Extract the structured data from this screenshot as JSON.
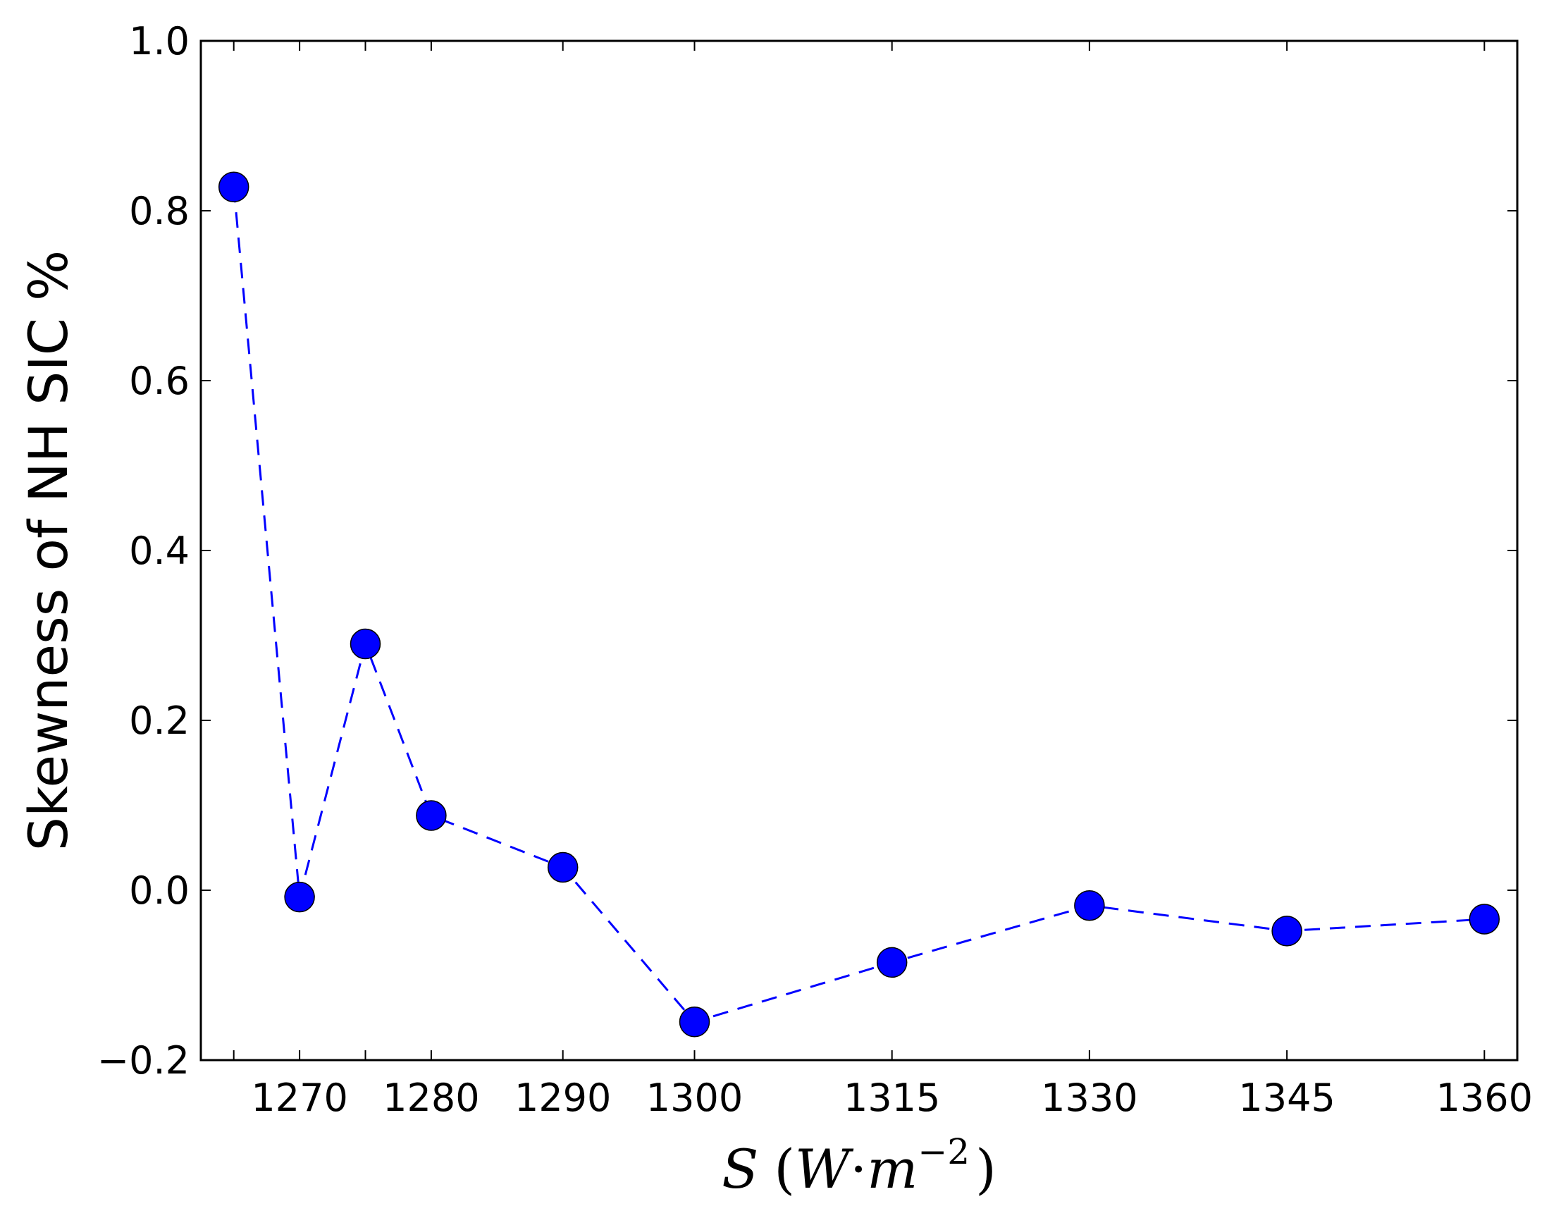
{
  "chart_data": {
    "type": "line",
    "title": "",
    "xlabel": {
      "var": "S",
      "open": "(",
      "unit": "W",
      "dot": "·",
      "m": "m",
      "exponent": "−2",
      "close": ")"
    },
    "ylabel": "Skewness of NH SIC %",
    "ylim": [
      -0.2,
      1.0
    ],
    "yticks": [
      -0.2,
      0.0,
      0.2,
      0.4,
      0.6,
      0.8,
      1.0
    ],
    "ytick_labels": [
      "−0.2",
      "0.0",
      "0.2",
      "0.4",
      "0.6",
      "0.8",
      "1.0"
    ],
    "categories": [
      "1265",
      "1270",
      "1275",
      "1280",
      "1290",
      "1300",
      "1315",
      "1330",
      "1345",
      "1360"
    ],
    "xtick_labels": [
      "",
      "1270",
      "",
      "1280",
      "1290",
      "1300",
      "1315",
      "1330",
      "1345",
      "1360"
    ],
    "series": [
      {
        "values": [
          0.828,
          -0.008,
          0.29,
          0.088,
          0.027,
          -0.155,
          -0.085,
          -0.018,
          -0.048,
          -0.034
        ],
        "color": "#0000ff",
        "line_style": "dashed",
        "marker": "circle"
      }
    ],
    "grid": false,
    "legend": "none"
  }
}
